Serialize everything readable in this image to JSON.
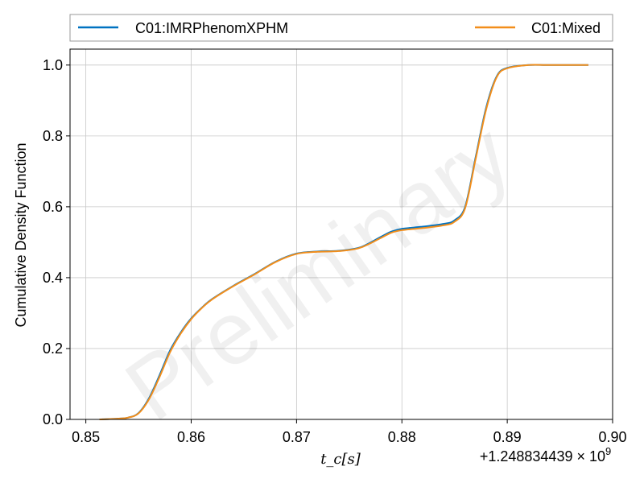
{
  "chart_data": {
    "type": "line",
    "title": "",
    "xlabel": "t_c[s]",
    "ylabel": "Cumulative Density Function",
    "x_offset_label": "+1.248834439 × 10",
    "x_offset_exponent": "9",
    "xlim": [
      0.8485,
      0.9
    ],
    "ylim": [
      0,
      1.045
    ],
    "x_ticks": [
      0.85,
      0.86,
      0.87,
      0.88,
      0.89,
      0.9
    ],
    "x_tick_labels": [
      "0.85",
      "0.86",
      "0.87",
      "0.88",
      "0.89",
      "0.90"
    ],
    "y_ticks": [
      0.0,
      0.2,
      0.4,
      0.6,
      0.8,
      1.0
    ],
    "y_tick_labels": [
      "0.0",
      "0.2",
      "0.4",
      "0.6",
      "0.8",
      "1.0"
    ],
    "grid": true,
    "legend_position": "top",
    "watermark": "Preliminary",
    "series": [
      {
        "name": "C01:IMRPhenomXPHM",
        "color": "#0072C1",
        "x": [
          0.8513,
          0.853,
          0.854,
          0.855,
          0.856,
          0.857,
          0.858,
          0.859,
          0.86,
          0.861,
          0.862,
          0.864,
          0.866,
          0.868,
          0.87,
          0.872,
          0.874,
          0.876,
          0.878,
          0.879,
          0.88,
          0.882,
          0.884,
          0.885,
          0.886,
          0.887,
          0.888,
          0.889,
          0.89,
          0.892,
          0.894,
          0.8977
        ],
        "y": [
          0.0,
          0.002,
          0.005,
          0.018,
          0.06,
          0.125,
          0.195,
          0.245,
          0.285,
          0.315,
          0.34,
          0.377,
          0.41,
          0.445,
          0.468,
          0.474,
          0.476,
          0.485,
          0.515,
          0.53,
          0.538,
          0.544,
          0.552,
          0.562,
          0.6,
          0.74,
          0.88,
          0.968,
          0.992,
          1.0,
          1.0,
          1.0
        ]
      },
      {
        "name": "C01:Mixed",
        "color": "#F28E1B",
        "x": [
          0.8513,
          0.853,
          0.854,
          0.855,
          0.856,
          0.857,
          0.858,
          0.859,
          0.86,
          0.861,
          0.862,
          0.864,
          0.866,
          0.868,
          0.87,
          0.872,
          0.874,
          0.876,
          0.878,
          0.879,
          0.88,
          0.882,
          0.884,
          0.885,
          0.886,
          0.887,
          0.888,
          0.889,
          0.89,
          0.892,
          0.894,
          0.8977
        ],
        "y": [
          0.0,
          0.002,
          0.005,
          0.017,
          0.057,
          0.12,
          0.19,
          0.242,
          0.283,
          0.314,
          0.339,
          0.376,
          0.409,
          0.444,
          0.467,
          0.473,
          0.475,
          0.484,
          0.512,
          0.527,
          0.534,
          0.54,
          0.548,
          0.558,
          0.596,
          0.735,
          0.875,
          0.966,
          0.991,
          1.0,
          1.0,
          1.0
        ]
      }
    ]
  }
}
